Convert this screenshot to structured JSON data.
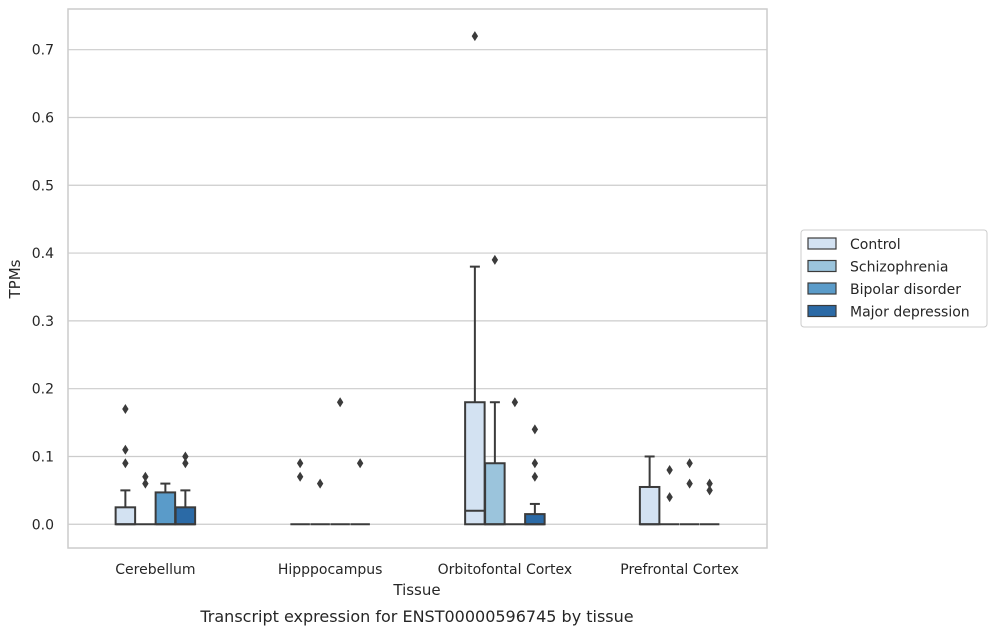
{
  "chart_data": {
    "type": "box",
    "categories": [
      "Cerebellum",
      "Hipppocampus",
      "Orbitofontal Cortex",
      "Prefrontal Cortex"
    ],
    "xlabel": "Tissue",
    "ylabel": "TPMs",
    "caption": "Transcript expression for ENST00000596745 by tissue",
    "ylim": [
      -0.035,
      0.76
    ],
    "yticks": [
      0.0,
      0.1,
      0.2,
      0.3,
      0.4,
      0.5,
      0.6,
      0.7
    ],
    "grid": "horizontal",
    "legend_placement": "right",
    "series": [
      {
        "name": "Control",
        "color": "#d3e2f2",
        "boxes": [
          {
            "q1": 0.0,
            "median": 0.0,
            "q3": 0.025,
            "whislo": 0.0,
            "whishi": 0.05,
            "fliers": [
              0.09,
              0.11,
              0.17
            ]
          },
          {
            "q1": 0.0,
            "median": 0.0,
            "q3": 0.0,
            "whislo": 0.0,
            "whishi": 0.0,
            "fliers": [
              0.07,
              0.09
            ]
          },
          {
            "q1": 0.0,
            "median": 0.02,
            "q3": 0.18,
            "whislo": 0.0,
            "whishi": 0.38,
            "fliers": [
              0.72
            ]
          },
          {
            "q1": 0.0,
            "median": 0.0,
            "q3": 0.055,
            "whislo": 0.0,
            "whishi": 0.1,
            "fliers": []
          }
        ]
      },
      {
        "name": "Schizophrenia",
        "color": "#9bc4dc",
        "boxes": [
          {
            "q1": 0.0,
            "median": 0.0,
            "q3": 0.0,
            "whislo": 0.0,
            "whishi": 0.0,
            "fliers": [
              0.06,
              0.07
            ]
          },
          {
            "q1": 0.0,
            "median": 0.0,
            "q3": 0.0,
            "whislo": 0.0,
            "whishi": 0.0,
            "fliers": [
              0.06
            ]
          },
          {
            "q1": 0.0,
            "median": 0.0,
            "q3": 0.09,
            "whislo": 0.0,
            "whishi": 0.18,
            "fliers": [
              0.39
            ]
          },
          {
            "q1": 0.0,
            "median": 0.0,
            "q3": 0.0,
            "whislo": 0.0,
            "whishi": 0.0,
            "fliers": [
              0.04,
              0.08
            ]
          }
        ]
      },
      {
        "name": "Bipolar disorder",
        "color": "#5a9bc9",
        "boxes": [
          {
            "q1": 0.0,
            "median": 0.0,
            "q3": 0.047,
            "whislo": 0.0,
            "whishi": 0.06,
            "fliers": []
          },
          {
            "q1": 0.0,
            "median": 0.0,
            "q3": 0.0,
            "whislo": 0.0,
            "whishi": 0.0,
            "fliers": [
              0.18
            ]
          },
          {
            "q1": 0.0,
            "median": 0.0,
            "q3": 0.0,
            "whislo": 0.0,
            "whishi": 0.0,
            "fliers": [
              0.18
            ]
          },
          {
            "q1": 0.0,
            "median": 0.0,
            "q3": 0.0,
            "whislo": 0.0,
            "whishi": 0.0,
            "fliers": [
              0.06,
              0.09
            ]
          }
        ]
      },
      {
        "name": "Major depression",
        "color": "#2b6aa6",
        "boxes": [
          {
            "q1": 0.0,
            "median": 0.0,
            "q3": 0.025,
            "whislo": 0.0,
            "whishi": 0.05,
            "fliers": [
              0.09,
              0.1
            ]
          },
          {
            "q1": 0.0,
            "median": 0.0,
            "q3": 0.0,
            "whislo": 0.0,
            "whishi": 0.0,
            "fliers": [
              0.09
            ]
          },
          {
            "q1": 0.0,
            "median": 0.0,
            "q3": 0.015,
            "whislo": 0.0,
            "whishi": 0.03,
            "fliers": [
              0.07,
              0.09,
              0.14
            ]
          },
          {
            "q1": 0.0,
            "median": 0.0,
            "q3": 0.0,
            "whislo": 0.0,
            "whishi": 0.0,
            "fliers": [
              0.05,
              0.06
            ]
          }
        ]
      }
    ]
  }
}
